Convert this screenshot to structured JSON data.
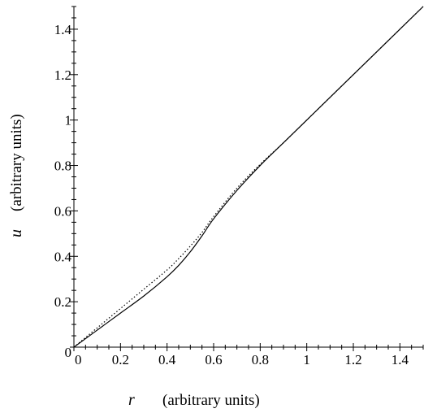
{
  "chart_data": {
    "type": "line",
    "xlabel": {
      "var": "r",
      "unit": "(arbitrary units)"
    },
    "ylabel": {
      "var": "u",
      "unit": "(arbitrary units)"
    },
    "xlim": [
      0,
      1.5
    ],
    "ylim": [
      0,
      1.5
    ],
    "xticks": [
      0,
      0.2,
      0.4,
      0.6,
      0.8,
      1,
      1.2,
      1.4
    ],
    "xtick_labels": [
      "0",
      "0.2",
      "0.4",
      "0.6",
      "0.8",
      "1",
      "1.2",
      "1.4"
    ],
    "yticks": [
      0,
      0.2,
      0.4,
      0.6,
      0.8,
      1,
      1.2,
      1.4
    ],
    "ytick_labels": [
      "0",
      "0.2",
      "0.4",
      "0.6",
      "0.8",
      "1",
      "1.2",
      "1.4"
    ],
    "grid": false,
    "series": [
      {
        "style": "solid",
        "color": "#000000",
        "x": [
          0,
          0.1,
          0.2,
          0.3,
          0.4,
          0.45,
          0.5,
          0.55,
          0.6,
          0.7,
          0.8,
          0.9,
          1.0,
          1.2,
          1.4,
          1.5
        ],
        "y": [
          0,
          0.075,
          0.15,
          0.225,
          0.31,
          0.36,
          0.42,
          0.49,
          0.565,
          0.69,
          0.8,
          0.9,
          1.0,
          1.2,
          1.4,
          1.5
        ]
      },
      {
        "style": "dotted",
        "color": "#000000",
        "x": [
          0,
          0.1,
          0.2,
          0.3,
          0.4,
          0.45,
          0.5,
          0.55,
          0.6,
          0.7,
          0.8,
          0.9,
          1.0,
          1.2,
          1.4,
          1.5
        ],
        "y": [
          0,
          0.085,
          0.17,
          0.255,
          0.34,
          0.39,
          0.445,
          0.505,
          0.575,
          0.7,
          0.805,
          0.9,
          1.0,
          1.2,
          1.4,
          1.5
        ]
      }
    ]
  }
}
